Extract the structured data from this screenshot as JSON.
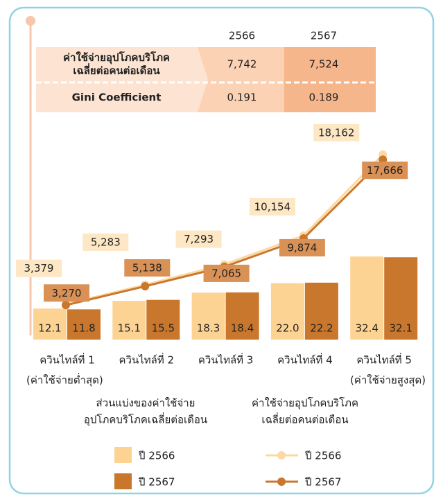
{
  "table": {
    "columns": [
      "2566",
      "2567"
    ],
    "rows": [
      {
        "label": [
          "ค่าใช้จ่ายอุปโภคบริโภค",
          "เฉลี่ยต่อคนต่อเดือน"
        ],
        "values": [
          "7,742",
          "7,524"
        ]
      },
      {
        "label": [
          "Gini Coefficient"
        ],
        "values": [
          "0.191",
          "0.189"
        ]
      }
    ]
  },
  "chart_data": {
    "type": "bar-line",
    "categories": [
      "ควินไทล์ที่ 1",
      "ควินไทล์ที่ 2",
      "ควินไทล์ที่ 3",
      "ควินไทล์ที่ 4",
      "ควินไทล์ที่ 5"
    ],
    "category_notes": [
      "(ค่าใช้จ่ายต่ำสุด)",
      null,
      null,
      null,
      "(ค่าใช้จ่ายสูงสุด)"
    ],
    "bar_legend_title": [
      "ส่วนแบ่งของค่าใช้จ่าย",
      "อุปโภคบริโภคเฉลี่ยต่อเดือน"
    ],
    "line_legend_title": [
      "ค่าใช้จ่ายอุปโภคบริโภค",
      "เฉลี่ยต่อคนต่อเดือน"
    ],
    "series": [
      {
        "name": "ปี 2566",
        "type": "bar",
        "color": "#fdd393",
        "values": [
          12.1,
          15.1,
          18.3,
          22.0,
          32.4
        ],
        "value_labels": [
          "12.1",
          "15.1",
          "18.3",
          "22.0",
          "32.4"
        ]
      },
      {
        "name": "ปี 2567",
        "type": "bar",
        "color": "#c9772c",
        "values": [
          11.8,
          15.5,
          18.4,
          22.2,
          32.1
        ]
      },
      {
        "name": "ปี 2566",
        "type": "line",
        "axis": "y2",
        "color": "#fcd9a2",
        "values": [
          3379,
          5283,
          7293,
          10154,
          18162
        ],
        "value_labels": [
          "3,379",
          "5,283",
          "7,293",
          "10,154",
          "18,162"
        ]
      },
      {
        "name": "ปี 2567",
        "type": "line",
        "axis": "y2",
        "color": "#c9772c",
        "values": [
          3270,
          5138,
          7065,
          9874,
          17666
        ],
        "value_labels": [
          "3,270",
          "5,138",
          "7,065",
          "9,874",
          "17,666"
        ]
      }
    ]
  }
}
